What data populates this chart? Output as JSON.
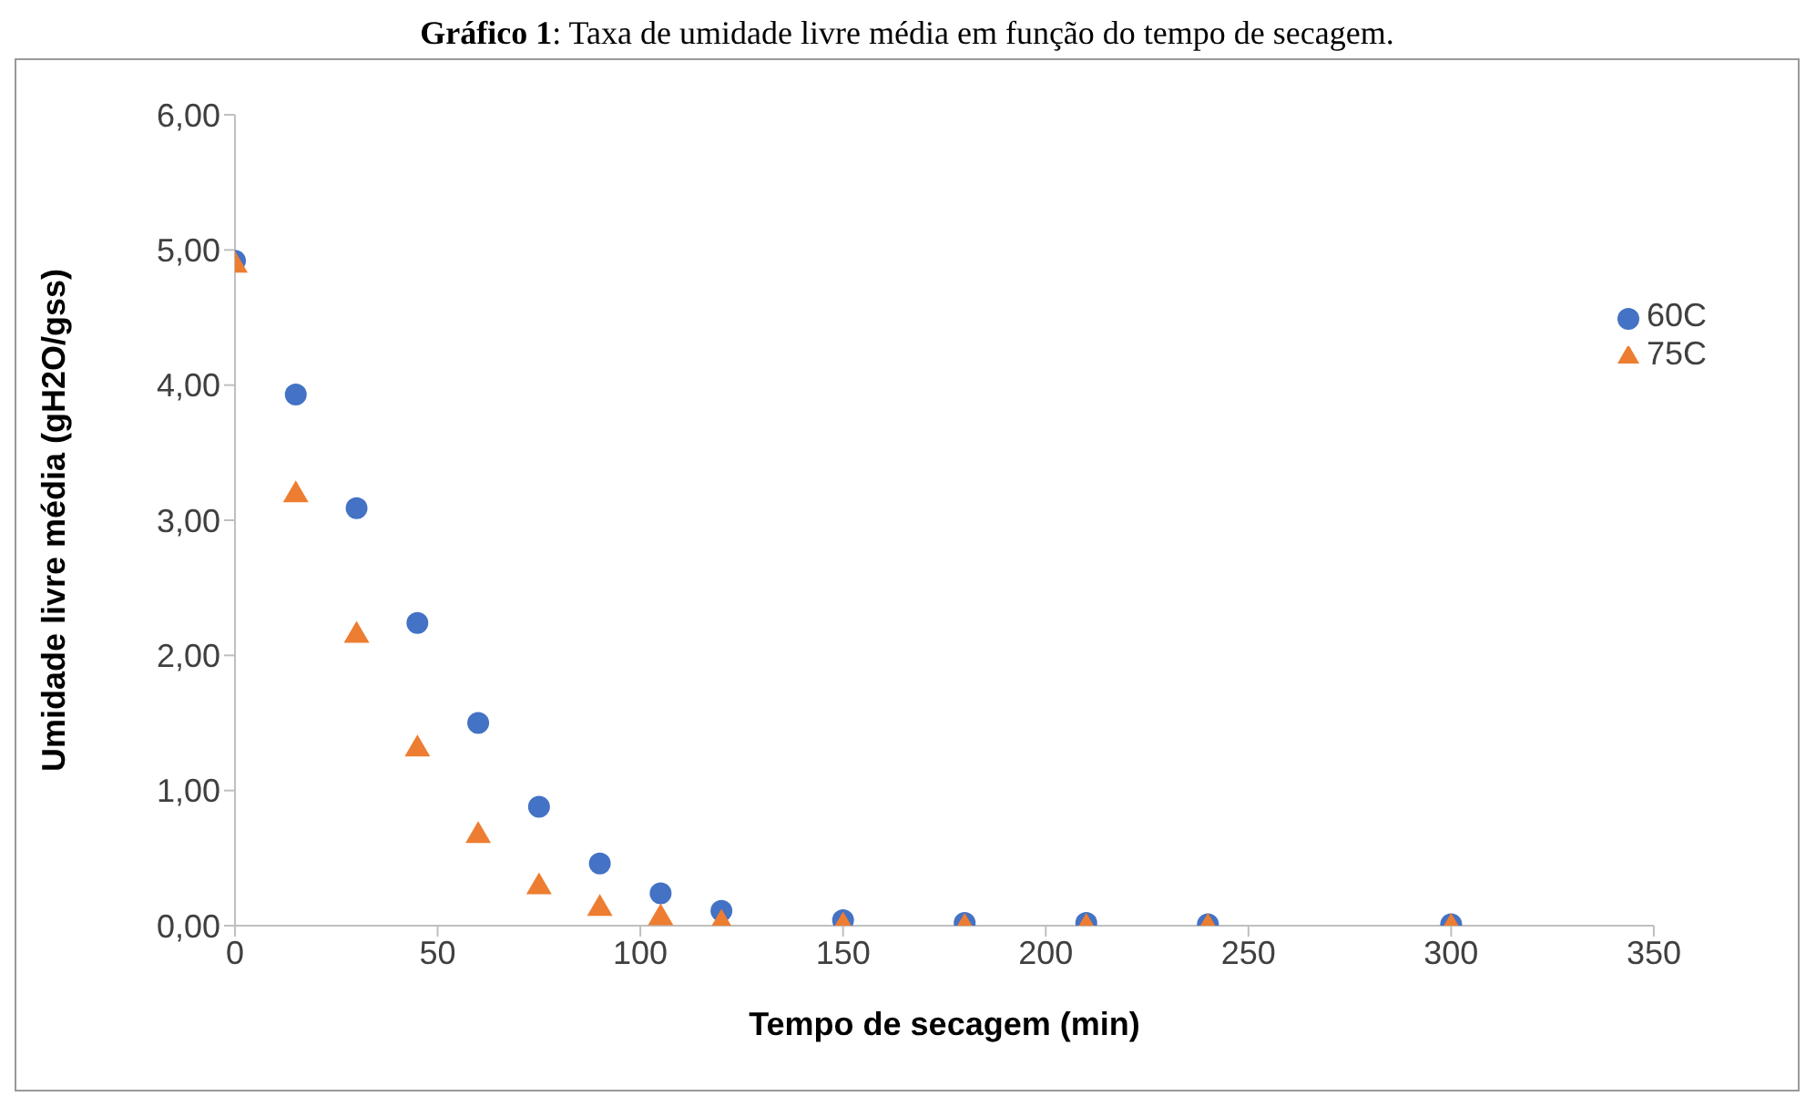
{
  "chart_data": {
    "type": "scatter",
    "title": "Gráfico 1: Taxa de umidade livre média em função do tempo de secagem.",
    "xlabel": "Tempo de secagem (min)",
    "ylabel": "Umidade livre média (gH2O/gss)",
    "x": [
      0,
      15,
      30,
      45,
      60,
      75,
      90,
      105,
      120,
      150,
      180,
      210,
      240,
      300
    ],
    "series": [
      {
        "name": "60C",
        "color": "#4472c4",
        "marker": "circle",
        "values": [
          4.92,
          3.93,
          3.09,
          2.24,
          1.5,
          0.88,
          0.46,
          0.24,
          0.11,
          0.04,
          0.02,
          0.02,
          0.01,
          0.01
        ]
      },
      {
        "name": "75C",
        "color": "#ed7d31",
        "marker": "triangle",
        "values": [
          4.9,
          3.2,
          2.16,
          1.32,
          0.68,
          0.3,
          0.14,
          0.07,
          0.03,
          0.01,
          0,
          0,
          0,
          0
        ]
      }
    ],
    "xlim": [
      0,
      350
    ],
    "xticks": [
      0,
      50,
      100,
      150,
      200,
      250,
      300,
      350
    ],
    "ylim": [
      0,
      6
    ],
    "yticks": [
      {
        "value": 0,
        "label": "0,00"
      },
      {
        "value": 1,
        "label": "1,00"
      },
      {
        "value": 2,
        "label": "2,00"
      },
      {
        "value": 3,
        "label": "3,00"
      },
      {
        "value": 4,
        "label": "4,00"
      },
      {
        "value": 5,
        "label": "5,00"
      },
      {
        "value": 6,
        "label": "6,00"
      }
    ],
    "grid": false,
    "legend": "right"
  }
}
